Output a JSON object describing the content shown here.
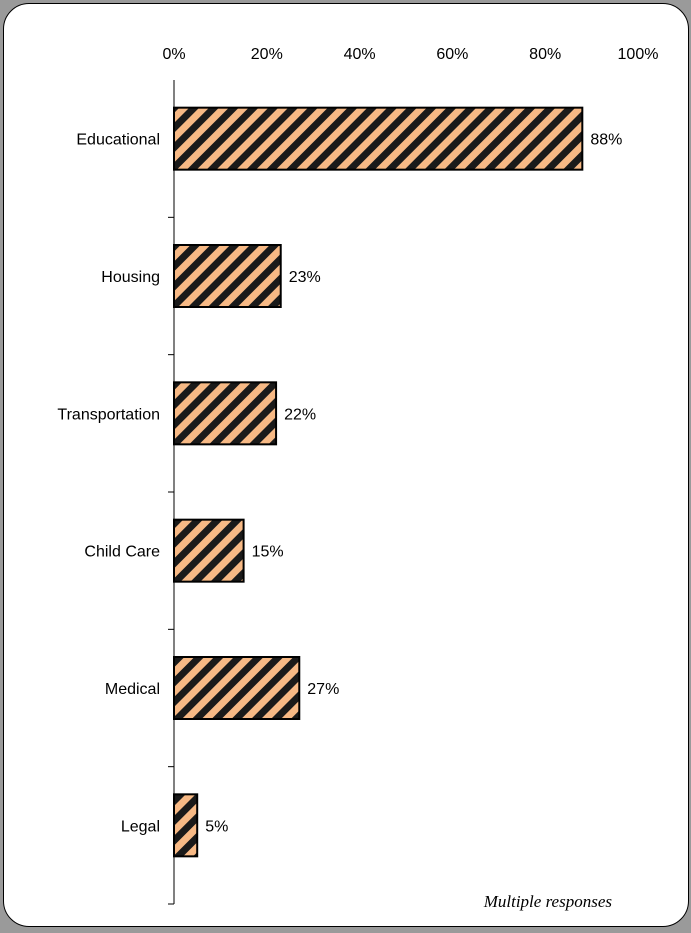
{
  "chart_data": {
    "type": "bar",
    "orientation": "horizontal",
    "categories": [
      "Educational",
      "Housing",
      "Transportation",
      "Child Care",
      "Medical",
      "Legal"
    ],
    "values": [
      88,
      23,
      22,
      15,
      27,
      5
    ],
    "value_labels": [
      "88%",
      "23%",
      "22%",
      "15%",
      "27%",
      "5%"
    ],
    "xlim": [
      0,
      100
    ],
    "x_ticks": [
      "0%",
      "20%",
      "40%",
      "60%",
      "80%",
      "100%"
    ],
    "x_axis_position": "top",
    "grid": false,
    "legend": "none",
    "bar_fill": "#f7b985",
    "bar_hatch_color": "#1a1a1a",
    "bar_hatch": "diagonal",
    "annotation": "Multiple responses"
  }
}
